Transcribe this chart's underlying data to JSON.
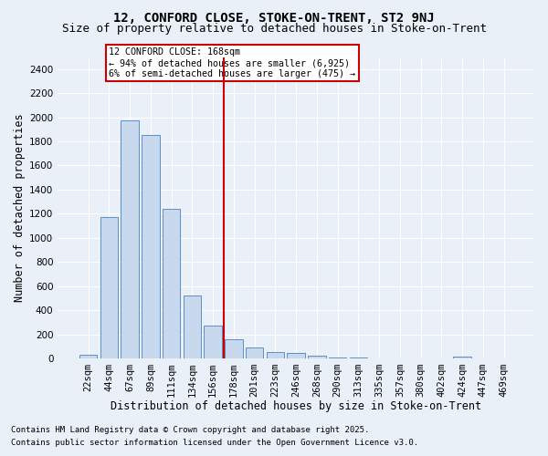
{
  "title1": "12, CONFORD CLOSE, STOKE-ON-TRENT, ST2 9NJ",
  "title2": "Size of property relative to detached houses in Stoke-on-Trent",
  "xlabel": "Distribution of detached houses by size in Stoke-on-Trent",
  "ylabel": "Number of detached properties",
  "categories": [
    "22sqm",
    "44sqm",
    "67sqm",
    "89sqm",
    "111sqm",
    "134sqm",
    "156sqm",
    "178sqm",
    "201sqm",
    "223sqm",
    "246sqm",
    "268sqm",
    "290sqm",
    "313sqm",
    "335sqm",
    "357sqm",
    "380sqm",
    "402sqm",
    "424sqm",
    "447sqm",
    "469sqm"
  ],
  "values": [
    30,
    1175,
    1975,
    1850,
    1240,
    520,
    275,
    155,
    90,
    50,
    42,
    25,
    10,
    5,
    2,
    2,
    1,
    1,
    15,
    0,
    0
  ],
  "bar_color": "#c9d9ed",
  "bar_edge_color": "#5b8fc9",
  "vline_index": 7,
  "vline_color": "#cc0000",
  "annotation_text": "12 CONFORD CLOSE: 168sqm\n← 94% of detached houses are smaller (6,925)\n6% of semi-detached houses are larger (475) →",
  "annotation_box_color": "#ffffff",
  "annotation_box_edge": "#cc0000",
  "ylim": [
    0,
    2500
  ],
  "yticks": [
    0,
    200,
    400,
    600,
    800,
    1000,
    1200,
    1400,
    1600,
    1800,
    2000,
    2200,
    2400
  ],
  "bg_color": "#eaf0f8",
  "grid_color": "#ffffff",
  "footnote1": "Contains HM Land Registry data © Crown copyright and database right 2025.",
  "footnote2": "Contains public sector information licensed under the Open Government Licence v3.0.",
  "title1_fontsize": 10,
  "title2_fontsize": 9,
  "xlabel_fontsize": 8.5,
  "ylabel_fontsize": 8.5,
  "tick_fontsize": 7.5,
  "footnote_fontsize": 6.5
}
